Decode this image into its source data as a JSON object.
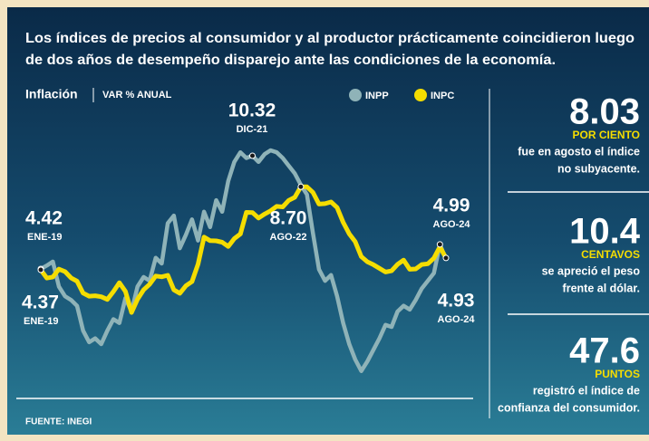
{
  "chart_data": {
    "type": "line",
    "title": [
      "Los índices de precios al consumidor y al productor prácticamente coincidieron luego",
      "de dos años de desempeño disparejo ante las condiciones de la economía."
    ],
    "header": "Inflación",
    "subheader": "VAR % ANUAL",
    "source": "FUENTE: INEGI",
    "series": [
      {
        "name": "INPP",
        "color": "#8fb3b8",
        "values": [
          4.42,
          4.6,
          4.8,
          3.5,
          3.0,
          2.8,
          2.5,
          1.2,
          0.6,
          0.8,
          0.5,
          1.2,
          1.8,
          1.6,
          2.9,
          2.2,
          3.5,
          4.0,
          3.8,
          5.0,
          4.7,
          6.8,
          7.2,
          5.5,
          6.2,
          7.0,
          5.9,
          7.4,
          6.6,
          8.0,
          7.4,
          9.0,
          10.0,
          10.5,
          10.2,
          10.32,
          10.0,
          10.4,
          10.6,
          10.5,
          10.2,
          9.8,
          9.4,
          8.8,
          8.3,
          6.3,
          4.4,
          3.8,
          4.1,
          3.0,
          1.6,
          0.5,
          -0.3,
          -0.9,
          -0.4,
          0.2,
          0.8,
          1.5,
          1.4,
          2.2,
          2.5,
          2.3,
          2.8,
          3.4,
          3.8,
          4.2,
          5.7,
          4.93
        ]
      },
      {
        "name": "INPC",
        "color": "#f5dd00",
        "values": [
          4.37,
          3.94,
          4.0,
          4.41,
          4.28,
          3.95,
          3.78,
          3.16,
          3.0,
          3.02,
          2.97,
          2.83,
          3.24,
          3.7,
          3.25,
          2.15,
          2.84,
          3.33,
          3.62,
          4.05,
          4.01,
          4.09,
          3.33,
          3.15,
          3.54,
          3.76,
          4.67,
          6.08,
          5.89,
          5.88,
          5.81,
          5.59,
          6.0,
          6.24,
          7.37,
          7.36,
          7.07,
          7.28,
          7.45,
          7.68,
          7.65,
          7.99,
          8.15,
          8.7,
          8.7,
          8.41,
          7.8,
          7.82,
          7.91,
          7.62,
          6.85,
          6.25,
          5.84,
          5.06,
          4.79,
          4.64,
          4.45,
          4.26,
          4.32,
          4.66,
          4.88,
          4.4,
          4.42,
          4.65,
          4.69,
          4.98,
          5.57,
          4.99
        ]
      }
    ],
    "ylim": [
      -2,
      14
    ],
    "annotations": [
      {
        "label": "4.42",
        "date": "ENE-19"
      },
      {
        "label": "4.37",
        "date": "ENE-19"
      },
      {
        "label": "10.32",
        "date": "DIC-21"
      },
      {
        "label": "8.70",
        "date": "AGO-22"
      },
      {
        "label": "4.99",
        "date": "AGO-24"
      },
      {
        "label": "4.93",
        "date": "AGO-24"
      }
    ]
  },
  "panels": [
    {
      "number": "8.03",
      "unit": "POR CIENTO",
      "lines": [
        "fue en agosto el índice",
        "no subyacente."
      ]
    },
    {
      "number": "10.4",
      "unit": "CENTAVOS",
      "lines": [
        "se apreció el peso",
        "frente al dólar."
      ]
    },
    {
      "number": "47.6",
      "unit": "PUNTOS",
      "lines": [
        "registró el índice de",
        "confianza del consumidor."
      ]
    }
  ]
}
